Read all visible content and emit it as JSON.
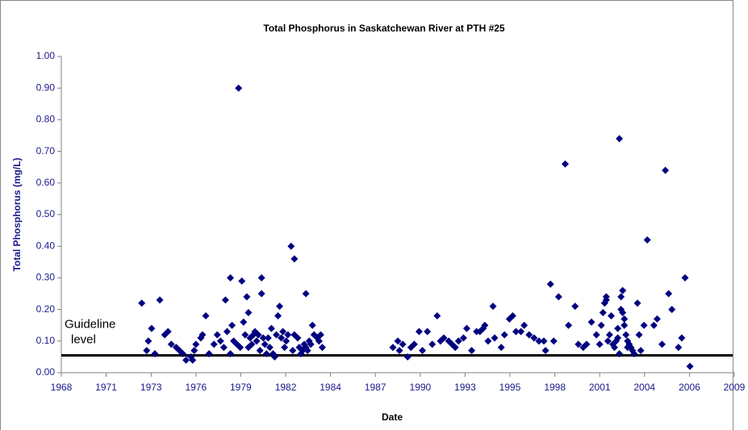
{
  "chart_data": {
    "type": "scatter",
    "title": "Total Phosphorus in Saskatchewan River at PTH #25",
    "x_label": "Date",
    "y_label": "Total Phosphorus (mg/L)",
    "color": "#000080",
    "guideline": {
      "value": 0.055,
      "label": [
        "Guideline",
        "level"
      ]
    },
    "xlim": [
      1968,
      2009
    ],
    "xticks": [
      {
        "value": 1968,
        "label": "1968"
      },
      {
        "value": 1970.73,
        "label": "1971"
      },
      {
        "value": 1973.47,
        "label": "1973"
      },
      {
        "value": 1976.2,
        "label": "1976"
      },
      {
        "value": 1978.93,
        "label": "1979"
      },
      {
        "value": 1981.67,
        "label": "1982"
      },
      {
        "value": 1984.4,
        "label": "1984"
      },
      {
        "value": 1987.13,
        "label": "1987"
      },
      {
        "value": 1989.87,
        "label": "1990"
      },
      {
        "value": 1992.6,
        "label": "1993"
      },
      {
        "value": 1995.33,
        "label": "1995"
      },
      {
        "value": 1998.07,
        "label": "1998"
      },
      {
        "value": 2000.8,
        "label": "2001"
      },
      {
        "value": 2003.53,
        "label": "2004"
      },
      {
        "value": 2006.27,
        "label": "2006"
      },
      {
        "value": 2009,
        "label": "2009"
      }
    ],
    "ylim": [
      0,
      1
    ],
    "yticks": [
      {
        "value": 0,
        "label": "0.00"
      },
      {
        "value": 0.1,
        "label": "0.10"
      },
      {
        "value": 0.2,
        "label": "0.20"
      },
      {
        "value": 0.3,
        "label": "0.30"
      },
      {
        "value": 0.4,
        "label": "0.40"
      },
      {
        "value": 0.5,
        "label": "0.50"
      },
      {
        "value": 0.6,
        "label": "0.60"
      },
      {
        "value": 0.7,
        "label": "0.70"
      },
      {
        "value": 0.8,
        "label": "0.80"
      },
      {
        "value": 0.9,
        "label": "0.90"
      },
      {
        "value": 1,
        "label": "1.00"
      }
    ],
    "x": [
      1972.9,
      1973.2,
      1973.3,
      1973.5,
      1973.7,
      1974.0,
      1974.3,
      1974.5,
      1974.7,
      1975.0,
      1975.2,
      1975.4,
      1975.6,
      1975.9,
      1976.0,
      1976.1,
      1976.2,
      1976.5,
      1976.6,
      1976.8,
      1977.0,
      1977.3,
      1977.5,
      1977.7,
      1977.9,
      1978.0,
      1978.1,
      1978.3,
      1978.3,
      1978.4,
      1978.5,
      1978.7,
      1978.8,
      1978.9,
      1979.0,
      1979.1,
      1979.2,
      1979.3,
      1979.4,
      1979.4,
      1979.5,
      1979.6,
      1979.7,
      1979.8,
      1979.9,
      1980.0,
      1980.1,
      1980.2,
      1980.2,
      1980.3,
      1980.4,
      1980.5,
      1980.6,
      1980.7,
      1980.8,
      1980.9,
      1981.0,
      1981.1,
      1981.2,
      1981.3,
      1981.4,
      1981.5,
      1981.6,
      1981.7,
      1981.8,
      1982.0,
      1982.1,
      1982.2,
      1982.2,
      1982.4,
      1982.5,
      1982.6,
      1982.7,
      1982.8,
      1982.9,
      1982.9,
      1983.0,
      1983.1,
      1983.2,
      1983.3,
      1983.4,
      1983.6,
      1983.7,
      1983.8,
      1983.9,
      1988.2,
      1988.5,
      1988.6,
      1988.8,
      1989.1,
      1989.3,
      1989.5,
      1989.8,
      1990.0,
      1990.3,
      1990.6,
      1990.9,
      1991.1,
      1991.3,
      1991.6,
      1991.8,
      1992.0,
      1992.2,
      1992.5,
      1992.7,
      1993.0,
      1993.3,
      1993.5,
      1993.7,
      1993.8,
      1994.0,
      1994.3,
      1994.4,
      1994.8,
      1995.0,
      1995.3,
      1995.5,
      1995.7,
      1996.0,
      1996.2,
      1996.5,
      1996.8,
      1997.1,
      1997.4,
      1997.5,
      1997.8,
      1998.0,
      1998.3,
      1998.7,
      1998.9,
      1999.3,
      1999.5,
      1999.8,
      2000.0,
      2000.3,
      2000.6,
      2000.8,
      2000.9,
      2001.0,
      2001.1,
      2001.2,
      2001.2,
      2001.3,
      2001.4,
      2001.5,
      2001.6,
      2001.7,
      2001.8,
      2001.9,
      2001.9,
      2002.0,
      2002.0,
      2002.1,
      2002.1,
      2002.2,
      2002.2,
      2002.3,
      2002.3,
      2002.4,
      2002.5,
      2002.5,
      2002.6,
      2002.7,
      2002.8,
      2002.9,
      2003.1,
      2003.2,
      2003.3,
      2003.5,
      2003.7,
      2004.1,
      2004.3,
      2004.6,
      2004.8,
      2005.0,
      2005.2,
      2005.6,
      2005.8,
      2006.0,
      2006.3
    ],
    "values": [
      0.22,
      0.07,
      0.1,
      0.14,
      0.06,
      0.23,
      0.12,
      0.13,
      0.09,
      0.08,
      0.07,
      0.06,
      0.04,
      0.05,
      0.04,
      0.07,
      0.09,
      0.11,
      0.12,
      0.18,
      0.06,
      0.09,
      0.12,
      0.1,
      0.08,
      0.23,
      0.13,
      0.3,
      0.06,
      0.15,
      0.1,
      0.09,
      0.9,
      0.08,
      0.29,
      0.16,
      0.12,
      0.24,
      0.19,
      0.08,
      0.11,
      0.09,
      0.12,
      0.13,
      0.1,
      0.12,
      0.07,
      0.3,
      0.25,
      0.11,
      0.09,
      0.06,
      0.11,
      0.08,
      0.14,
      0.06,
      0.05,
      0.12,
      0.18,
      0.21,
      0.11,
      0.13,
      0.08,
      0.1,
      0.12,
      0.4,
      0.07,
      0.12,
      0.36,
      0.11,
      0.08,
      0.06,
      0.07,
      0.09,
      0.08,
      0.25,
      0.07,
      0.1,
      0.09,
      0.15,
      0.12,
      0.11,
      0.1,
      0.12,
      0.08,
      0.08,
      0.1,
      0.07,
      0.09,
      0.05,
      0.08,
      0.09,
      0.13,
      0.07,
      0.13,
      0.09,
      0.18,
      0.1,
      0.11,
      0.1,
      0.09,
      0.08,
      0.1,
      0.11,
      0.14,
      0.07,
      0.13,
      0.13,
      0.14,
      0.15,
      0.1,
      0.21,
      0.11,
      0.08,
      0.12,
      0.17,
      0.18,
      0.13,
      0.13,
      0.15,
      0.12,
      0.11,
      0.1,
      0.1,
      0.07,
      0.28,
      0.1,
      0.24,
      0.66,
      0.15,
      0.21,
      0.09,
      0.08,
      0.09,
      0.16,
      0.12,
      0.09,
      0.15,
      0.19,
      0.22,
      0.23,
      0.24,
      0.1,
      0.12,
      0.18,
      0.09,
      0.08,
      0.1,
      0.11,
      0.14,
      0.74,
      0.06,
      0.2,
      0.24,
      0.26,
      0.19,
      0.17,
      0.15,
      0.12,
      0.08,
      0.1,
      0.09,
      0.08,
      0.07,
      0.06,
      0.22,
      0.12,
      0.07,
      0.15,
      0.42,
      0.15,
      0.17,
      0.09,
      0.64,
      0.25,
      0.2,
      0.08,
      0.11,
      0.3,
      0.02
    ]
  }
}
